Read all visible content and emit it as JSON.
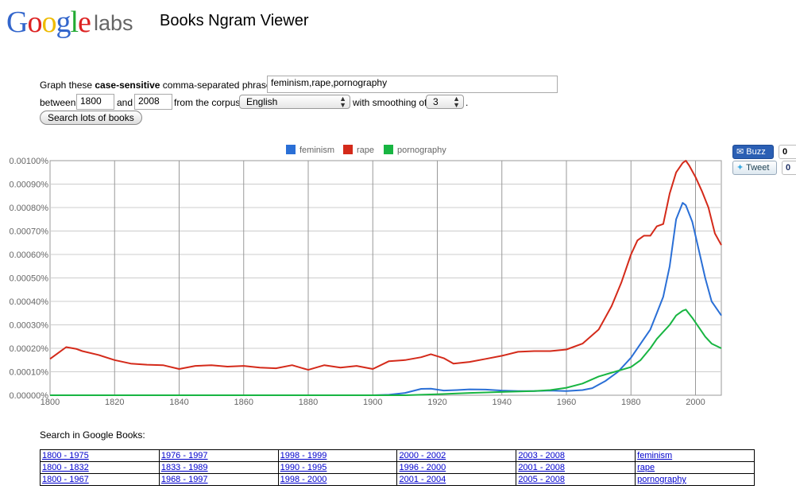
{
  "header": {
    "logo_letters": [
      {
        "ch": "G",
        "color": "#3366cc"
      },
      {
        "ch": "o",
        "color": "#dd2222"
      },
      {
        "ch": "o",
        "color": "#eebb00"
      },
      {
        "ch": "g",
        "color": "#3366cc"
      },
      {
        "ch": "l",
        "color": "#22aa33"
      },
      {
        "ch": "e",
        "color": "#dd2222"
      }
    ],
    "logo_suffix": "labs",
    "title": "Books Ngram Viewer"
  },
  "form": {
    "intro_prefix": "Graph these ",
    "intro_bold": "case-sensitive",
    "intro_suffix": " comma-separated phrases:",
    "phrases_value": "feminism,rape,pornography",
    "between_label": "between",
    "start_year": "1800",
    "and_label": "and",
    "end_year": "2008",
    "corpus_label": "from the corpus",
    "corpus_value": "English",
    "smoothing_label": "with smoothing of",
    "smoothing_value": "3",
    "smoothing_suffix": ".",
    "search_button": "Search lots of books"
  },
  "social": {
    "buzz_label": "Buzz",
    "buzz_count": "0",
    "tweet_label": "Tweet",
    "tweet_count": "0"
  },
  "chart_data": {
    "type": "line",
    "x_range": [
      1800,
      2008
    ],
    "ylim": [
      0,
      0.001
    ],
    "y_ticks": [
      "0.00000%",
      "0.00010%",
      "0.00020%",
      "0.00030%",
      "0.00040%",
      "0.00050%",
      "0.00060%",
      "0.00070%",
      "0.00080%",
      "0.00090%",
      "0.00100%"
    ],
    "x_ticks": [
      "1800",
      "1820",
      "1840",
      "1860",
      "1880",
      "1900",
      "1920",
      "1940",
      "1960",
      "1980",
      "2000"
    ],
    "grid": true,
    "legend_position": "top-center",
    "series": [
      {
        "name": "feminism",
        "color": "#2a6fd6",
        "points": [
          [
            1800,
            0.0
          ],
          [
            1900,
            0.0
          ],
          [
            1905,
            2e-06
          ],
          [
            1910,
            1e-05
          ],
          [
            1915,
            2.7e-05
          ],
          [
            1918,
            2.8e-05
          ],
          [
            1922,
            2e-05
          ],
          [
            1926,
            2.2e-05
          ],
          [
            1930,
            2.5e-05
          ],
          [
            1935,
            2.4e-05
          ],
          [
            1940,
            2e-05
          ],
          [
            1945,
            1.8e-05
          ],
          [
            1950,
            1.8e-05
          ],
          [
            1955,
            2e-05
          ],
          [
            1960,
            1.8e-05
          ],
          [
            1965,
            2.2e-05
          ],
          [
            1968,
            3e-05
          ],
          [
            1972,
            6e-05
          ],
          [
            1976,
            0.0001
          ],
          [
            1980,
            0.00016
          ],
          [
            1984,
            0.00024
          ],
          [
            1986,
            0.00028
          ],
          [
            1988,
            0.00035
          ],
          [
            1990,
            0.00042
          ],
          [
            1992,
            0.00055
          ],
          [
            1994,
            0.00075
          ],
          [
            1996,
            0.00082
          ],
          [
            1997,
            0.00081
          ],
          [
            1999,
            0.00074
          ],
          [
            2001,
            0.00062
          ],
          [
            2003,
            0.0005
          ],
          [
            2005,
            0.0004
          ],
          [
            2008,
            0.00034
          ]
        ]
      },
      {
        "name": "rape",
        "color": "#d42a1a",
        "points": [
          [
            1800,
            0.000155
          ],
          [
            1803,
            0.000185
          ],
          [
            1805,
            0.000205
          ],
          [
            1808,
            0.000198
          ],
          [
            1810,
            0.000188
          ],
          [
            1815,
            0.000172
          ],
          [
            1820,
            0.00015
          ],
          [
            1825,
            0.000135
          ],
          [
            1830,
            0.00013
          ],
          [
            1835,
            0.000128
          ],
          [
            1840,
            0.000112
          ],
          [
            1845,
            0.000125
          ],
          [
            1850,
            0.000128
          ],
          [
            1855,
            0.000122
          ],
          [
            1860,
            0.000125
          ],
          [
            1865,
            0.000118
          ],
          [
            1870,
            0.000115
          ],
          [
            1875,
            0.000128
          ],
          [
            1880,
            0.000108
          ],
          [
            1885,
            0.000128
          ],
          [
            1890,
            0.000118
          ],
          [
            1895,
            0.000125
          ],
          [
            1900,
            0.000112
          ],
          [
            1905,
            0.000145
          ],
          [
            1910,
            0.00015
          ],
          [
            1915,
            0.000162
          ],
          [
            1918,
            0.000175
          ],
          [
            1922,
            0.000158
          ],
          [
            1925,
            0.000135
          ],
          [
            1930,
            0.000142
          ],
          [
            1935,
            0.000155
          ],
          [
            1940,
            0.000168
          ],
          [
            1945,
            0.000185
          ],
          [
            1950,
            0.000188
          ],
          [
            1955,
            0.000188
          ],
          [
            1960,
            0.000195
          ],
          [
            1965,
            0.00022
          ],
          [
            1970,
            0.00028
          ],
          [
            1974,
            0.00038
          ],
          [
            1977,
            0.00048
          ],
          [
            1980,
            0.0006
          ],
          [
            1982,
            0.00066
          ],
          [
            1984,
            0.00068
          ],
          [
            1986,
            0.00068
          ],
          [
            1988,
            0.00072
          ],
          [
            1990,
            0.00073
          ],
          [
            1992,
            0.00086
          ],
          [
            1994,
            0.00095
          ],
          [
            1996,
            0.00099
          ],
          [
            1997,
            0.001
          ],
          [
            1998,
            0.00098
          ],
          [
            2000,
            0.00093
          ],
          [
            2002,
            0.00087
          ],
          [
            2004,
            0.0008
          ],
          [
            2006,
            0.00069
          ],
          [
            2008,
            0.00064
          ]
        ]
      },
      {
        "name": "pornography",
        "color": "#18b542",
        "points": [
          [
            1800,
            0.0
          ],
          [
            1910,
            0.0
          ],
          [
            1920,
            4e-06
          ],
          [
            1930,
            1e-05
          ],
          [
            1940,
            1.4e-05
          ],
          [
            1950,
            1.8e-05
          ],
          [
            1955,
            2.2e-05
          ],
          [
            1960,
            3.2e-05
          ],
          [
            1965,
            5e-05
          ],
          [
            1970,
            8e-05
          ],
          [
            1975,
            0.0001
          ],
          [
            1980,
            0.00012
          ],
          [
            1983,
            0.00015
          ],
          [
            1986,
            0.0002
          ],
          [
            1988,
            0.00024
          ],
          [
            1990,
            0.00027
          ],
          [
            1992,
            0.0003
          ],
          [
            1994,
            0.00034
          ],
          [
            1996,
            0.00036
          ],
          [
            1997,
            0.000365
          ],
          [
            1999,
            0.00033
          ],
          [
            2001,
            0.00029
          ],
          [
            2003,
            0.00025
          ],
          [
            2005,
            0.00022
          ],
          [
            2008,
            0.0002
          ]
        ]
      }
    ]
  },
  "books_search": {
    "heading": "Search in Google Books:",
    "rows": [
      {
        "ranges": [
          "1800 - 1975",
          "1976 - 1997",
          "1998 - 1999",
          "2000 - 2002",
          "2003 - 2008"
        ],
        "term": "feminism"
      },
      {
        "ranges": [
          "1800 - 1832",
          "1833 - 1989",
          "1990 - 1995",
          "1996 - 2000",
          "2001 - 2008"
        ],
        "term": "rape"
      },
      {
        "ranges": [
          "1800 - 1967",
          "1968 - 1997",
          "1998 - 2000",
          "2001 - 2004",
          "2005 - 2008"
        ],
        "term": "pornography"
      }
    ]
  }
}
